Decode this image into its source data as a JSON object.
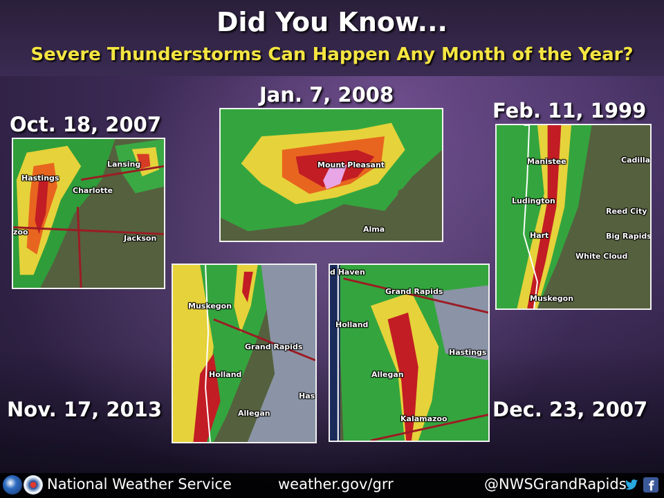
{
  "header": {
    "title": "Did You Know...",
    "subtitle": "Severe Thunderstorms Can Happen Any Month of the Year?"
  },
  "events": [
    {
      "date": "Oct. 18, 2007",
      "cities": [
        "Lansing",
        "Hastings",
        "Charlotte",
        "zoo",
        "Jackson"
      ]
    },
    {
      "date": "Jan. 7, 2008",
      "cities": [
        "Mount Pleasant",
        "Alma"
      ]
    },
    {
      "date": "Feb. 11, 1999",
      "cities": [
        "Manistee",
        "Cadillac",
        "Ludington",
        "Reed City",
        "Hart",
        "Big Rapids",
        "White Cloud",
        "Muskegon"
      ]
    },
    {
      "date": "Nov. 17, 2013",
      "cities": [
        "Muskegon",
        "Grand Rapids",
        "Holland",
        "Has",
        "Allegan"
      ]
    },
    {
      "date": "Dec. 23, 2007",
      "cities": [
        "d Haven",
        "Grand Rapids",
        "Holland",
        "Hastings",
        "Allegan",
        "Kalamazoo"
      ]
    }
  ],
  "footer": {
    "agency": "National Weather Service",
    "website": "weather.gov/grr",
    "handle": "@NWSGrandRapids",
    "icons": [
      "noaa-logo",
      "nws-logo",
      "twitter-icon",
      "facebook-icon"
    ]
  },
  "colors": {
    "subtitle": "#f4e542",
    "title": "#ffffff"
  }
}
